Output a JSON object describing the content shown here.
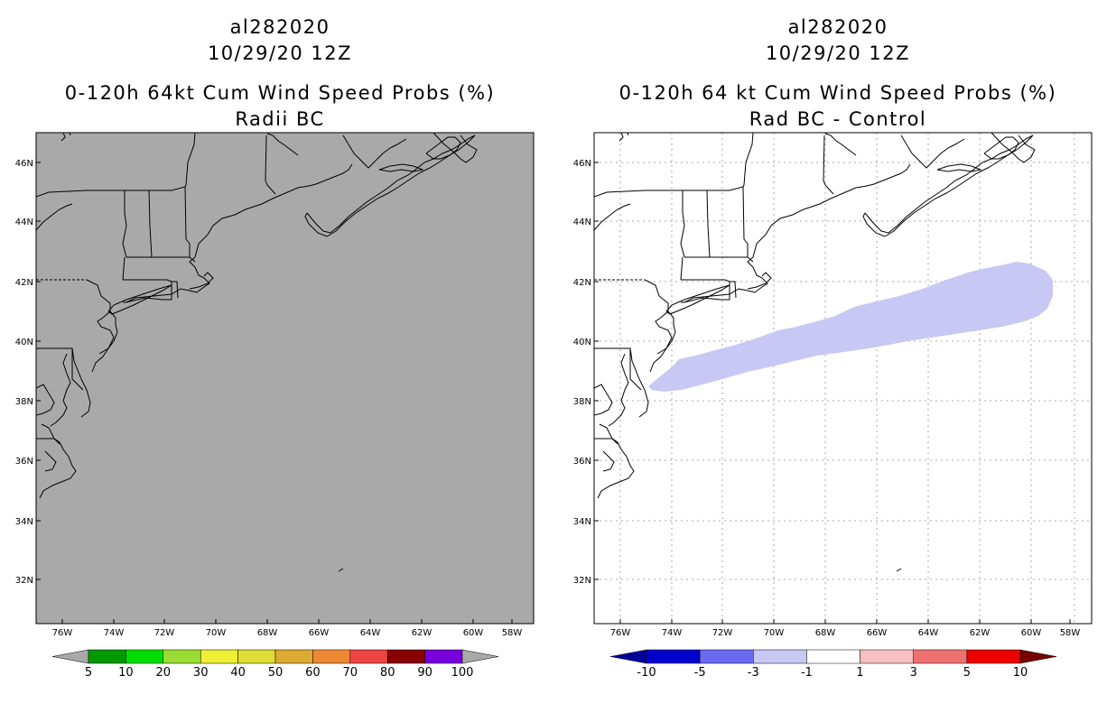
{
  "left": {
    "storm_id": "al282020",
    "datetime": "10/29/20 12Z",
    "title": "0-120h 64kt Cum Wind Speed Probs (%)",
    "subtitle": "Radii BC",
    "background_color": "#a9a9a9",
    "colorbar": {
      "labels": [
        "5",
        "10",
        "20",
        "30",
        "40",
        "50",
        "60",
        "70",
        "80",
        "90",
        "100"
      ],
      "colors": [
        "#009900",
        "#00dd00",
        "#99dd33",
        "#eeee33",
        "#dddd33",
        "#ddaa33",
        "#ee8833",
        "#ee4444",
        "#880000",
        "#7700dd"
      ],
      "under_color": "#a9a9a9",
      "over_color": "#a9a9a9"
    }
  },
  "right": {
    "storm_id": "al282020",
    "datetime": "10/29/20 12Z",
    "title": "0-120h 64 kt Cum Wind Speed Probs (%)",
    "subtitle": "Rad BC - Control",
    "background_color": "#ffffff",
    "shaded_color": "#c8c8f5",
    "shaded_region_label": "-3 to -1",
    "colorbar": {
      "labels": [
        "-10",
        "-5",
        "-3",
        "-1",
        "1",
        "3",
        "5",
        "10"
      ],
      "colors": [
        "#0000cc",
        "#6a6af0",
        "#c8c8f5",
        "#ffffff",
        "#f8c0c0",
        "#f07070",
        "#ee0000"
      ],
      "under_color": "#000099",
      "over_color": "#770000"
    }
  },
  "axes": {
    "lat_labels": [
      "46N",
      "44N",
      "42N",
      "40N",
      "38N",
      "36N",
      "34N",
      "32N"
    ],
    "lon_labels": [
      "76W",
      "74W",
      "72W",
      "70W",
      "68W",
      "66W",
      "64W",
      "62W",
      "60W",
      "58W"
    ]
  }
}
